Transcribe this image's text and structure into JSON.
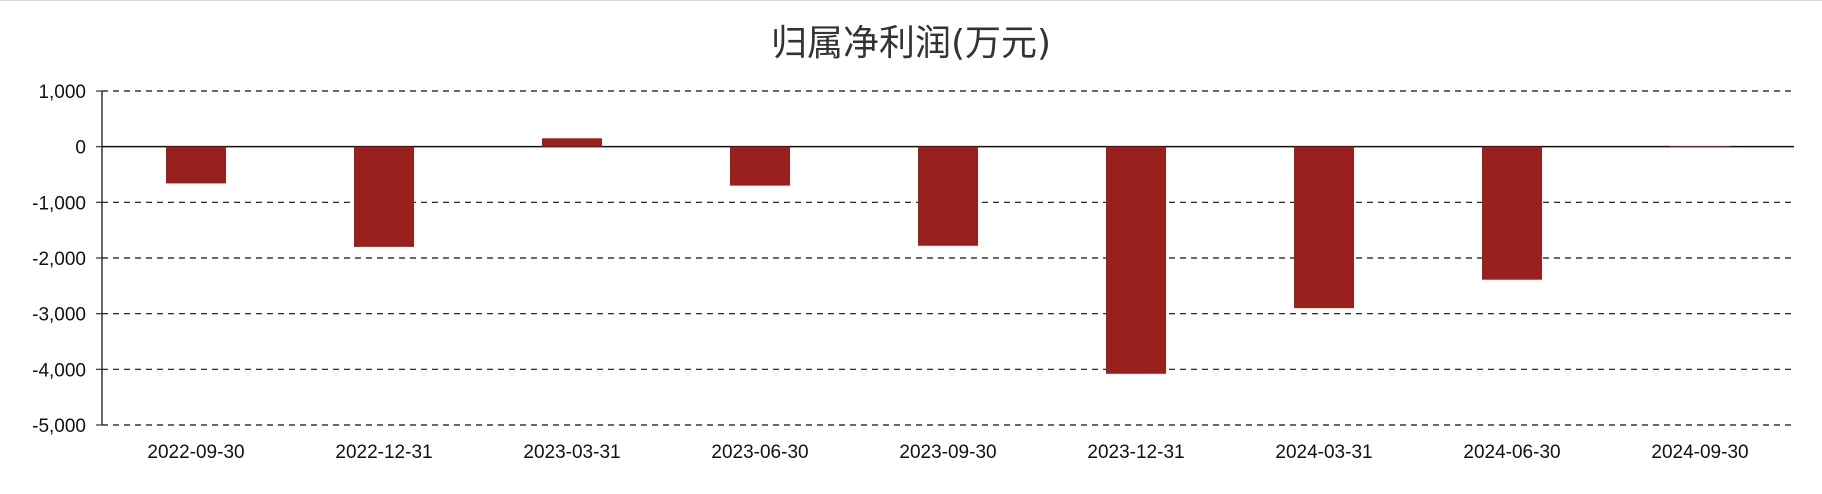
{
  "chart_data": {
    "type": "bar",
    "title": "归属净利润(万元)",
    "xlabel": "",
    "ylabel": "",
    "categories": [
      "2022-09-30",
      "2022-12-31",
      "2023-03-31",
      "2023-06-30",
      "2023-09-30",
      "2023-12-31",
      "2024-03-31",
      "2024-06-30",
      "2024-09-30"
    ],
    "values": [
      -660,
      -1800,
      150,
      -700,
      -1780,
      -4080,
      -2900,
      -2390,
      10
    ],
    "ylim": [
      -5000,
      1000
    ],
    "yticks": [
      1000,
      0,
      -1000,
      -2000,
      -3000,
      -4000,
      -5000
    ],
    "ytick_labels": [
      "1,000",
      "0",
      "-1,000",
      "-2,000",
      "-3,000",
      "-4,000",
      "-5,000"
    ],
    "grid": true,
    "grid_style": "dashed",
    "legend": "none",
    "bar_color": "#99201c"
  }
}
